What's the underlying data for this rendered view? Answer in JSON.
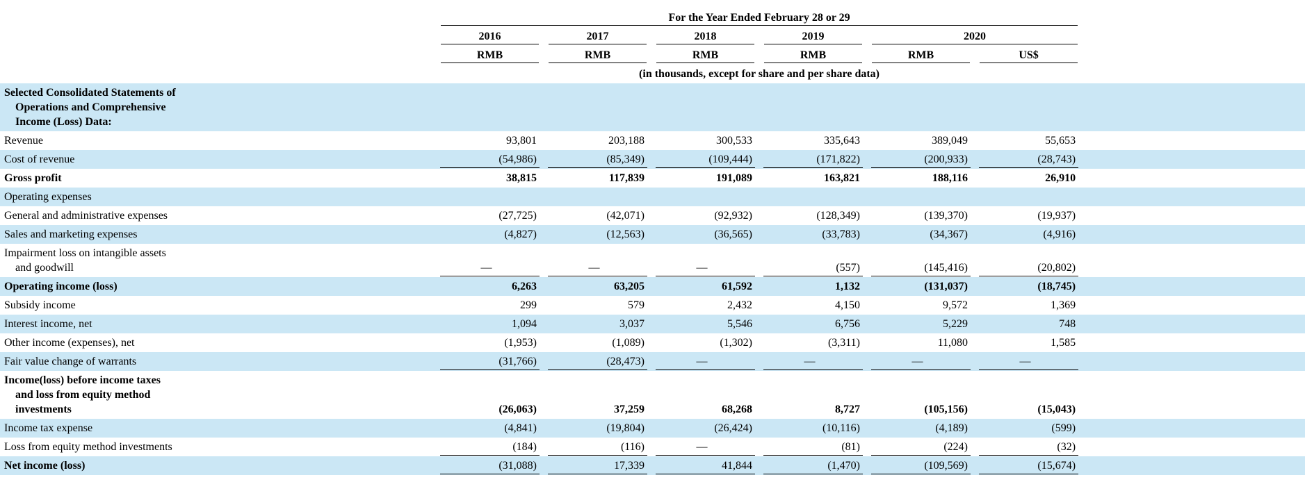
{
  "table": {
    "header": {
      "title": "For the Year Ended February 28 or 29",
      "years": [
        "2016",
        "2017",
        "2018",
        "2019",
        "2020"
      ],
      "currencies": [
        "RMB",
        "RMB",
        "RMB",
        "RMB",
        "RMB",
        "US$"
      ],
      "note": "(in thousands, except for share and per share data)"
    },
    "rows": [
      {
        "label_lines": [
          "Selected Consolidated Statements of",
          "Operations and Comprehensive",
          "Income (Loss) Data:"
        ],
        "bold": true,
        "shade": true,
        "values": [],
        "values_bold": false,
        "rule": false
      },
      {
        "label_lines": [
          "Revenue"
        ],
        "bold": false,
        "shade": false,
        "values": [
          "93,801",
          "203,188",
          "300,533",
          "335,643",
          "389,049",
          "55,653"
        ],
        "values_bold": false,
        "rule": false
      },
      {
        "label_lines": [
          "Cost of revenue"
        ],
        "bold": false,
        "shade": true,
        "values": [
          "(54,986)",
          "(85,349)",
          "(109,444)",
          "(171,822)",
          "(200,933)",
          "(28,743)"
        ],
        "values_bold": false,
        "rule": true
      },
      {
        "label_lines": [
          "Gross profit"
        ],
        "bold": true,
        "shade": false,
        "values": [
          "38,815",
          "117,839",
          "191,089",
          "163,821",
          "188,116",
          "26,910"
        ],
        "values_bold": true,
        "rule": false
      },
      {
        "label_lines": [
          "Operating expenses"
        ],
        "bold": false,
        "shade": true,
        "values": [],
        "values_bold": false,
        "rule": false
      },
      {
        "label_lines": [
          "General and administrative expenses"
        ],
        "bold": false,
        "shade": false,
        "values": [
          "(27,725)",
          "(42,071)",
          "(92,932)",
          "(128,349)",
          "(139,370)",
          "(19,937)"
        ],
        "values_bold": false,
        "rule": false
      },
      {
        "label_lines": [
          "Sales and marketing expenses"
        ],
        "bold": false,
        "shade": true,
        "values": [
          "(4,827)",
          "(12,563)",
          "(36,565)",
          "(33,783)",
          "(34,367)",
          "(4,916)"
        ],
        "values_bold": false,
        "rule": false
      },
      {
        "label_lines": [
          "Impairment loss on intangible assets",
          "and goodwill"
        ],
        "bold": false,
        "shade": false,
        "values": [
          "—",
          "—",
          "—",
          "(557)",
          "(145,416)",
          "(20,802)"
        ],
        "values_bold": false,
        "rule": true
      },
      {
        "label_lines": [
          "Operating income (loss)"
        ],
        "bold": true,
        "shade": true,
        "values": [
          "6,263",
          "63,205",
          "61,592",
          "1,132",
          "(131,037)",
          "(18,745)"
        ],
        "values_bold": true,
        "rule": false
      },
      {
        "label_lines": [
          "Subsidy income"
        ],
        "bold": false,
        "shade": false,
        "values": [
          "299",
          "579",
          "2,432",
          "4,150",
          "9,572",
          "1,369"
        ],
        "values_bold": false,
        "rule": false
      },
      {
        "label_lines": [
          "Interest income, net"
        ],
        "bold": false,
        "shade": true,
        "values": [
          "1,094",
          "3,037",
          "5,546",
          "6,756",
          "5,229",
          "748"
        ],
        "values_bold": false,
        "rule": false
      },
      {
        "label_lines": [
          "Other income (expenses), net"
        ],
        "bold": false,
        "shade": false,
        "values": [
          "(1,953)",
          "(1,089)",
          "(1,302)",
          "(3,311)",
          "11,080",
          "1,585"
        ],
        "values_bold": false,
        "rule": false
      },
      {
        "label_lines": [
          "Fair value change of warrants"
        ],
        "bold": false,
        "shade": true,
        "values": [
          "(31,766)",
          "(28,473)",
          "—",
          "—",
          "—",
          "—"
        ],
        "values_bold": false,
        "rule": true
      },
      {
        "label_lines": [
          "Income(loss) before income taxes",
          "and loss from equity method",
          "investments"
        ],
        "bold": true,
        "shade": false,
        "values": [
          "(26,063)",
          "37,259",
          "68,268",
          "8,727",
          "(105,156)",
          "(15,043)"
        ],
        "values_bold": true,
        "rule": false
      },
      {
        "label_lines": [
          "Income tax expense"
        ],
        "bold": false,
        "shade": true,
        "values": [
          "(4,841)",
          "(19,804)",
          "(26,424)",
          "(10,116)",
          "(4,189)",
          "(599)"
        ],
        "values_bold": false,
        "rule": false
      },
      {
        "label_lines": [
          "Loss from equity method investments"
        ],
        "bold": false,
        "shade": false,
        "values": [
          "(184)",
          "(116)",
          "—",
          "(81)",
          "(224)",
          "(32)"
        ],
        "values_bold": false,
        "rule": true
      },
      {
        "label_lines": [
          "Net income (loss)"
        ],
        "bold": true,
        "shade": true,
        "values": [
          "(31,088)",
          "17,339",
          "41,844",
          "(1,470)",
          "(109,569)",
          "(15,674)"
        ],
        "values_bold": false,
        "rule": true
      }
    ]
  }
}
